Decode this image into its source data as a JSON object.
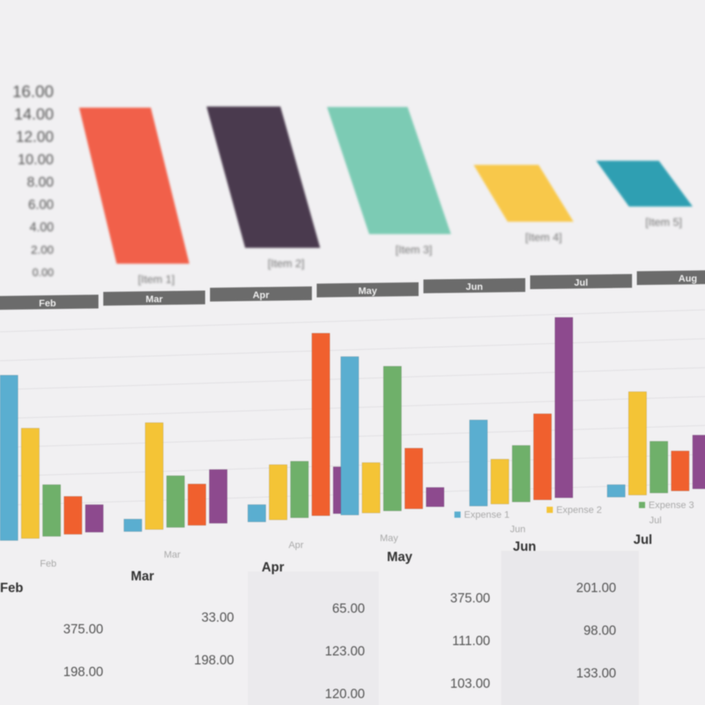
{
  "colors": {
    "page": "#f1f0f2",
    "strip": "#6b6b6b",
    "top_bars": [
      "#f1604a",
      "#4a3a4e",
      "#7ccbb4",
      "#f8c84a",
      "#2f9fb2"
    ],
    "series": [
      "#5aaed0",
      "#f4c436",
      "#6fb06a",
      "#f0602e",
      "#8d4a8e"
    ]
  },
  "chart_data": [
    {
      "type": "bar",
      "categories": [
        "[Item 1]",
        "[Item 2]",
        "[Item 3]",
        "[Item 4]",
        "[Item 5]"
      ],
      "values": [
        15,
        14,
        13,
        6,
        5
      ],
      "yticks": [
        "0.00",
        "2.00",
        "4.00",
        "6.00",
        "8.00",
        "10.00",
        "12.00",
        "14.00",
        "16.00"
      ],
      "ylim": [
        0,
        16
      ],
      "grid": false
    },
    {
      "type": "bar",
      "categories": [
        "Feb",
        "Mar",
        "Apr",
        "May",
        "Jun",
        "Jul"
      ],
      "series": [
        {
          "name": "Expense 1",
          "values": [
            240,
            18,
            25,
            230,
            125,
            18
          ]
        },
        {
          "name": "Expense 2",
          "values": [
            160,
            155,
            80,
            73,
            65,
            150
          ]
        },
        {
          "name": "Expense 3",
          "values": [
            75,
            75,
            82,
            210,
            82,
            75
          ]
        },
        {
          "values": [
            55,
            60,
            265,
            88,
            125,
            58
          ]
        },
        {
          "values": [
            40,
            78,
            68,
            28,
            262,
            78
          ]
        }
      ],
      "legend": "bottom-right",
      "grid": true
    }
  ],
  "month_strip": [
    "Feb",
    "Mar",
    "Apr",
    "May",
    "Jun",
    "Jul",
    "Aug"
  ],
  "table": {
    "headers": [
      "Feb",
      "Mar",
      "Apr",
      "May",
      "Jun",
      "Jul"
    ],
    "columns": [
      [
        "375.00",
        "198.00"
      ],
      [
        "33.00",
        "198.00"
      ],
      [
        "65.00",
        "123.00",
        "120.00"
      ],
      [
        "375.00",
        "111.00",
        "103.00"
      ],
      [
        "201.00",
        "98.00",
        "133.00"
      ],
      []
    ]
  }
}
